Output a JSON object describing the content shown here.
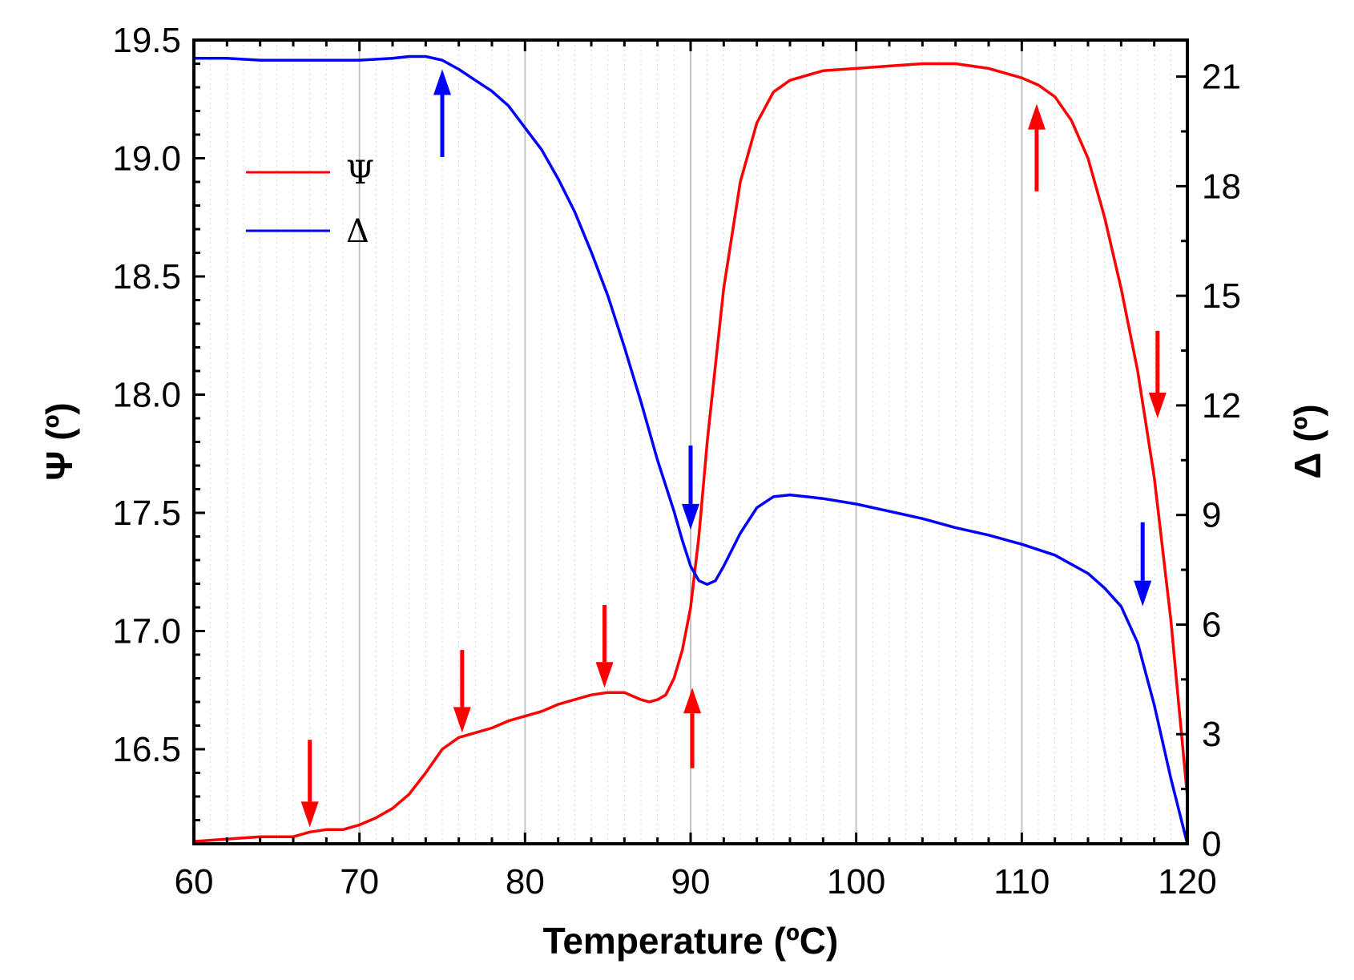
{
  "chart_data": {
    "type": "line",
    "title": "",
    "xlabel": "Temperature (ºC)",
    "ylabel_left": "Ψ (º)",
    "ylabel_right": "Δ (º)",
    "xlim": [
      60,
      120
    ],
    "ylim_left": [
      16.1,
      19.5
    ],
    "ylim_right": [
      0,
      22
    ],
    "x_ticks": [
      60,
      70,
      80,
      90,
      100,
      110,
      120
    ],
    "y_left_ticks": [
      16.5,
      17.0,
      17.5,
      18.0,
      18.5,
      19.0,
      19.5
    ],
    "y_right_ticks": [
      0,
      3,
      6,
      9,
      12,
      15,
      18,
      21
    ],
    "tick_labels": {
      "x": [
        "60",
        "70",
        "80",
        "90",
        "100",
        "110",
        "120"
      ],
      "y_left": [
        "16.5",
        "17.0",
        "17.5",
        "18.0",
        "18.5",
        "19.0",
        "19.5"
      ],
      "y_right": [
        "0",
        "3",
        "6",
        "9",
        "12",
        "15",
        "18",
        "21"
      ]
    },
    "grid": "vertical",
    "legend_position": "top-left",
    "series": [
      {
        "name": "Ψ",
        "axis": "left",
        "color": "#ff0000",
        "x": [
          60,
          62,
          64,
          66,
          67,
          68,
          69,
          70,
          71,
          72,
          73,
          74,
          75,
          76,
          77,
          78,
          79,
          80,
          81,
          82,
          83,
          84,
          85,
          86,
          87,
          87.5,
          88,
          88.5,
          89,
          89.5,
          90,
          90.5,
          91,
          92,
          93,
          94,
          95,
          96,
          97,
          98,
          100,
          102,
          104,
          106,
          108,
          110,
          111,
          112,
          113,
          114,
          115,
          116,
          117,
          118,
          119,
          120
        ],
        "y": [
          16.11,
          16.12,
          16.13,
          16.13,
          16.15,
          16.16,
          16.16,
          16.18,
          16.21,
          16.25,
          16.31,
          16.4,
          16.5,
          16.55,
          16.57,
          16.59,
          16.62,
          16.64,
          16.66,
          16.69,
          16.71,
          16.73,
          16.74,
          16.74,
          16.71,
          16.7,
          16.71,
          16.73,
          16.8,
          16.92,
          17.1,
          17.4,
          17.8,
          18.45,
          18.9,
          19.15,
          19.28,
          19.33,
          19.35,
          19.37,
          19.38,
          19.39,
          19.4,
          19.4,
          19.38,
          19.34,
          19.31,
          19.26,
          19.16,
          19.0,
          18.75,
          18.45,
          18.1,
          17.65,
          17.05,
          16.3
        ]
      },
      {
        "name": "Δ",
        "axis": "right",
        "color": "#0000ff",
        "x": [
          60,
          62,
          64,
          66,
          68,
          70,
          72,
          73,
          74,
          75,
          76,
          77,
          78,
          79,
          80,
          81,
          82,
          83,
          84,
          85,
          86,
          87,
          88,
          89,
          89.5,
          90,
          90.5,
          91,
          91.5,
          92,
          93,
          94,
          95,
          96,
          97,
          98,
          100,
          102,
          104,
          106,
          108,
          110,
          112,
          114,
          115,
          116,
          117,
          118,
          119,
          120
        ],
        "y": [
          21.5,
          21.5,
          21.45,
          21.45,
          21.45,
          21.45,
          21.5,
          21.55,
          21.55,
          21.45,
          21.2,
          20.9,
          20.6,
          20.2,
          19.6,
          19.0,
          18.2,
          17.3,
          16.2,
          15.0,
          13.6,
          12.1,
          10.5,
          9.1,
          8.3,
          7.6,
          7.2,
          7.1,
          7.2,
          7.6,
          8.5,
          9.2,
          9.5,
          9.55,
          9.5,
          9.45,
          9.3,
          9.1,
          8.9,
          8.65,
          8.45,
          8.2,
          7.9,
          7.4,
          7.0,
          6.5,
          5.5,
          3.8,
          1.8,
          0.0
        ]
      }
    ],
    "annotations": [
      {
        "type": "arrow",
        "direction": "up",
        "color": "#0000ff",
        "x": 75.0,
        "axis": "right",
        "y_tip": 21.2,
        "y_tail": 18.8
      },
      {
        "type": "arrow",
        "direction": "down",
        "color": "#0000ff",
        "x": 90.0,
        "axis": "right",
        "y_tail": 10.9,
        "y_tip": 8.6
      },
      {
        "type": "arrow",
        "direction": "down",
        "color": "#0000ff",
        "x": 117.3,
        "axis": "right",
        "y_tail": 8.8,
        "y_tip": 6.5
      },
      {
        "type": "arrow",
        "direction": "down",
        "color": "#ff0000",
        "x": 67.0,
        "axis": "left",
        "y_tail": 16.54,
        "y_tip": 16.17
      },
      {
        "type": "arrow",
        "direction": "down",
        "color": "#ff0000",
        "x": 76.2,
        "axis": "left",
        "y_tail": 16.92,
        "y_tip": 16.57
      },
      {
        "type": "arrow",
        "direction": "down",
        "color": "#ff0000",
        "x": 84.8,
        "axis": "left",
        "y_tail": 17.11,
        "y_tip": 16.76
      },
      {
        "type": "arrow",
        "direction": "up",
        "color": "#ff0000",
        "x": 90.1,
        "axis": "left",
        "y_tip": 16.76,
        "y_tail": 16.42
      },
      {
        "type": "arrow",
        "direction": "up",
        "color": "#ff0000",
        "x": 110.9,
        "axis": "left",
        "y_tip": 19.23,
        "y_tail": 18.86
      },
      {
        "type": "arrow",
        "direction": "down",
        "color": "#ff0000",
        "x": 118.2,
        "axis": "left",
        "y_tail": 18.27,
        "y_tip": 17.9
      }
    ]
  },
  "legend": {
    "items": [
      {
        "label": "Ψ",
        "color": "#ff0000"
      },
      {
        "label": "Δ",
        "color": "#0000ff"
      }
    ]
  }
}
